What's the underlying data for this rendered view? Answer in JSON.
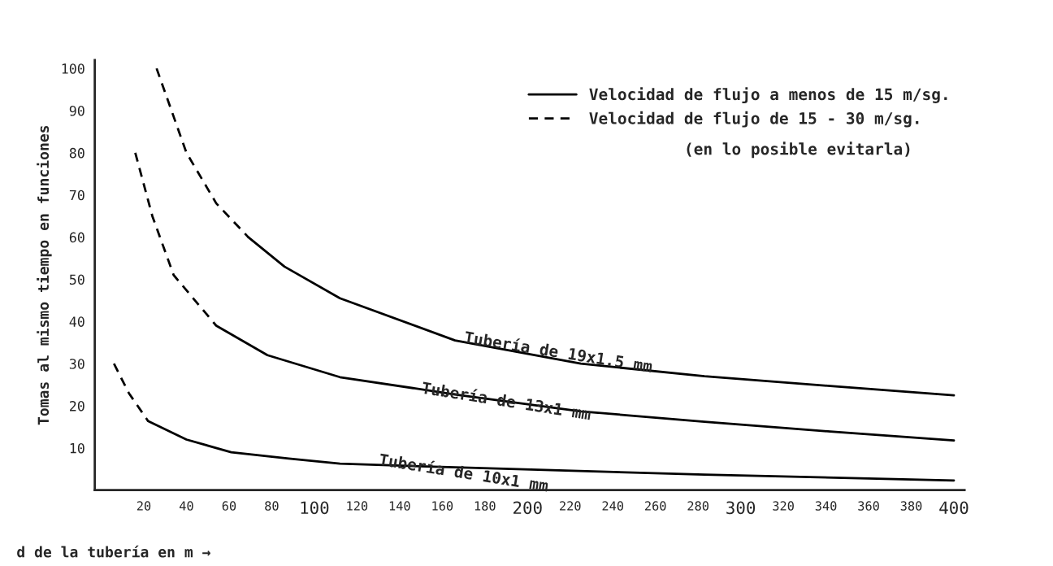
{
  "chart_data": {
    "type": "line",
    "xlabel": "d de la tubería en m →",
    "ylabel": "Tomas al mismo tiempo en funciones",
    "xlim": [
      -3,
      405
    ],
    "ylim": [
      0,
      102
    ],
    "xticks": [
      20,
      40,
      60,
      80,
      100,
      120,
      140,
      160,
      180,
      200,
      220,
      240,
      260,
      280,
      300,
      320,
      340,
      360,
      380,
      400
    ],
    "yticks": [
      10,
      20,
      30,
      40,
      50,
      60,
      70,
      80,
      90,
      100
    ],
    "grid": false,
    "legend": "top right",
    "series": [
      {
        "name": "Velocidad de flujo a menos de 15 m/sg.",
        "color": "#000000",
        "line_style": "solid",
        "x": [
          69,
          86,
          112,
          166,
          225,
          283,
          342,
          400
        ],
        "values": [
          60,
          53,
          45.5,
          35.5,
          30,
          27,
          24.7,
          22.5
        ]
      },
      {
        "name": "Velocidad de flujo de 15 - 30 m/sg.",
        "color": "#000000",
        "line_style": "dashed",
        "x": [
          26,
          40,
          54,
          69
        ],
        "values": [
          100,
          80,
          68,
          60
        ]
      },
      {
        "color": "#000000",
        "line_style": "dashed",
        "x": [
          16,
          24,
          34,
          54
        ],
        "values": [
          80,
          65,
          51,
          39
        ]
      },
      {
        "color": "#000000",
        "line_style": "solid",
        "x": [
          54,
          78,
          112,
          166,
          225,
          283,
          342,
          400
        ],
        "values": [
          39,
          32,
          26.8,
          22.7,
          18.7,
          16.2,
          13.9,
          11.8
        ]
      },
      {
        "color": "#000000",
        "line_style": "dashed",
        "x": [
          6,
          13,
          22
        ],
        "values": [
          30,
          23,
          16.4
        ]
      },
      {
        "color": "#000000",
        "line_style": "solid",
        "x": [
          22,
          40,
          61,
          88,
          112,
          166,
          283,
          400
        ],
        "values": [
          16.4,
          12,
          9,
          7.5,
          6.3,
          5.4,
          3.7,
          2.3
        ]
      }
    ],
    "annotations": [
      {
        "text": "Tubería de 19x1.5 mm",
        "x": 170,
        "y": 35
      },
      {
        "text": "Tubería de 13x1 mm",
        "x": 150,
        "y": 23
      },
      {
        "text": "Tubería de 10x1 mm",
        "x": 130,
        "y": 6
      },
      "(en lo posible evitarla)"
    ]
  }
}
